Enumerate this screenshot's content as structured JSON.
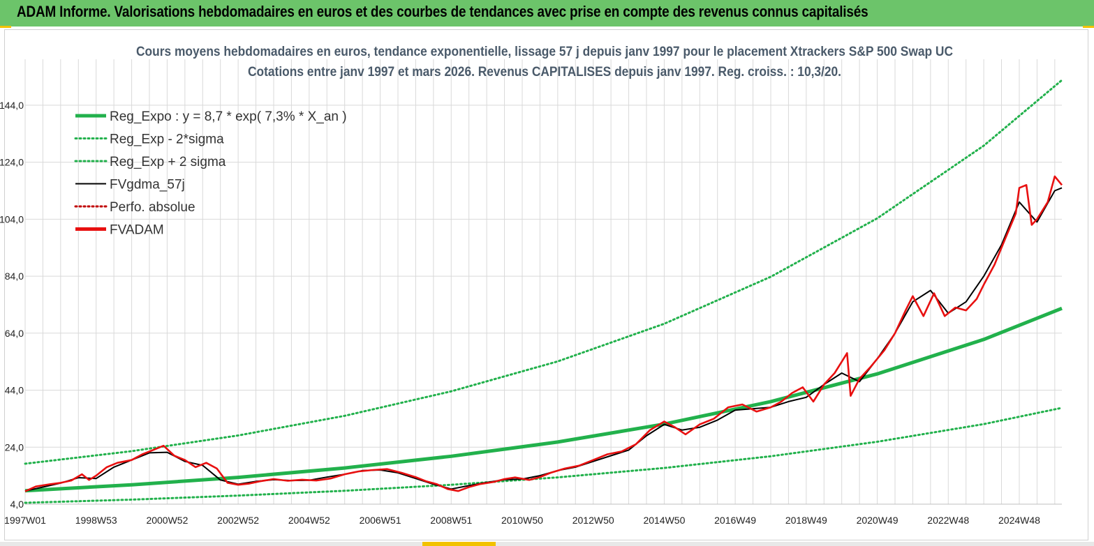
{
  "header": {
    "title": "ADAM Informe. Valorisations hebdomadaires en euros et des courbes de tendances avec prise en compte des revenus connus capitalisés"
  },
  "colors": {
    "header_bg": "#6cc46a",
    "reg_expo": "#22b14c",
    "sigma_bands": "#22b14c",
    "fvgdma": "#000000",
    "perfo_absolue": "#c00000",
    "fvadam": "#e81010",
    "grid": "#d9d9d9"
  },
  "chart_data": {
    "type": "line",
    "title": [
      "Cours moyens hebdomadaires en euros, tendance exponentielle, lissage 57 j depuis janv 1997  pour le placement Xtrackers S&P 500 Swap UC",
      "Cotations entre janv 1997 et mars 2026. Revenus CAPITALISES  depuis janv 1997. Reg. croiss. : 10,3/20."
    ],
    "xlabel": "",
    "ylabel": "",
    "ylim": [
      4.0,
      154.0
    ],
    "yticks": [
      4.0,
      24.0,
      44.0,
      64.0,
      84.0,
      104.0,
      124.0,
      144.0
    ],
    "ytick_labels": [
      "4,0",
      "24,0",
      "44,0",
      "64,0",
      "84,0",
      "104,0",
      "124,0",
      "144,0"
    ],
    "xlim": [
      1997.0,
      2026.2
    ],
    "xticks": [
      1997.0,
      1999.0,
      2001.0,
      2003.0,
      2005.0,
      2007.0,
      2009.0,
      2011.0,
      2013.0,
      2015.0,
      2017.0,
      2019.0,
      2021.0,
      2023.0,
      2025.0
    ],
    "xtick_labels": [
      "1997W01",
      "1998W53",
      "2000W52",
      "2002W52",
      "2004W52",
      "2006W51",
      "2008W51",
      "2010W50",
      "2012W50",
      "2014W50",
      "2016W49",
      "2018W49",
      "2020W49",
      "2022W48",
      "2024W48"
    ],
    "grid": true,
    "legend_position": "top-left",
    "legend": [
      {
        "label": "Reg_Expo : y = 8,7 * exp( 7,3% *  X_an )",
        "style": "thick-solid",
        "color": "#22b14c"
      },
      {
        "label": "Reg_Exp - 2*sigma",
        "style": "dotted",
        "color": "#22b14c"
      },
      {
        "label": "Reg_Exp + 2 sigma",
        "style": "dotted",
        "color": "#22b14c"
      },
      {
        "label": "FVgdma_57j",
        "style": "solid",
        "color": "#000000"
      },
      {
        "label": "Perfo. absolue",
        "style": "dotted",
        "color": "#c00000"
      },
      {
        "label": "FVADAM",
        "style": "thick-solid",
        "color": "#e81010"
      }
    ],
    "series": [
      {
        "name": "Reg_Expo : y = 8,7 * exp( 7,3% *  X_an )",
        "x": [
          1997.0,
          2000.0,
          2003.0,
          2006.0,
          2009.0,
          2012.0,
          2015.0,
          2018.0,
          2021.0,
          2024.0,
          2026.2
        ],
        "y": [
          8.7,
          10.8,
          13.4,
          16.7,
          20.8,
          25.8,
          32.1,
          40.0,
          49.7,
          61.8,
          72.7
        ]
      },
      {
        "name": "Reg_Exp - 2*sigma",
        "x": [
          1997.0,
          2000.0,
          2003.0,
          2006.0,
          2009.0,
          2012.0,
          2015.0,
          2018.0,
          2021.0,
          2024.0,
          2026.2
        ],
        "y": [
          4.5,
          5.6,
          7.0,
          8.7,
          10.8,
          13.4,
          16.7,
          20.8,
          25.9,
          32.1,
          37.8
        ]
      },
      {
        "name": "Reg_Exp + 2 sigma",
        "x": [
          1997.0,
          2000.0,
          2003.0,
          2006.0,
          2009.0,
          2012.0,
          2015.0,
          2018.0,
          2021.0,
          2024.0,
          2026.2
        ],
        "y": [
          18.2,
          22.6,
          28.1,
          35.0,
          43.6,
          54.1,
          67.3,
          83.8,
          104.3,
          129.8,
          152.8
        ]
      },
      {
        "name": "FVgdma_57j",
        "x": [
          1997.0,
          1997.5,
          1998.0,
          1998.5,
          1999.0,
          1999.5,
          2000.0,
          2000.5,
          2001.0,
          2001.5,
          2002.0,
          2002.5,
          2003.0,
          2003.5,
          2004.0,
          2004.5,
          2005.0,
          2005.5,
          2006.0,
          2006.5,
          2007.0,
          2007.5,
          2008.0,
          2008.5,
          2009.0,
          2009.5,
          2010.0,
          2010.5,
          2011.0,
          2011.5,
          2012.0,
          2012.5,
          2013.0,
          2013.5,
          2014.0,
          2014.5,
          2015.0,
          2015.5,
          2016.0,
          2016.5,
          2017.0,
          2017.5,
          2018.0,
          2018.5,
          2019.0,
          2019.5,
          2020.0,
          2020.5,
          2021.0,
          2021.5,
          2022.0,
          2022.5,
          2023.0,
          2023.5,
          2024.0,
          2024.5,
          2025.0,
          2025.5,
          2026.0,
          2026.2
        ],
        "y": [
          8.6,
          10.0,
          11.4,
          13.3,
          13.0,
          17.0,
          19.5,
          22.0,
          22.2,
          19.0,
          17.6,
          12.5,
          11.0,
          12.0,
          12.6,
          12.3,
          12.4,
          13.5,
          14.5,
          15.8,
          16.0,
          15.0,
          13.0,
          11.0,
          9.3,
          10.5,
          11.6,
          12.6,
          12.8,
          14.0,
          15.8,
          17.0,
          19.0,
          21.0,
          23.0,
          28.0,
          32.0,
          30.0,
          31.0,
          33.5,
          37.0,
          37.5,
          38.0,
          40.0,
          41.5,
          46.0,
          50.0,
          47.0,
          55.0,
          64.0,
          75.0,
          79.0,
          71.0,
          75.0,
          84.0,
          95.0,
          110.0,
          103.0,
          114.0,
          115.0
        ]
      },
      {
        "name": "FVADAM",
        "x": [
          1997.0,
          1997.3,
          1997.7,
          1998.0,
          1998.3,
          1998.6,
          1998.8,
          1999.0,
          1999.3,
          1999.6,
          2000.0,
          2000.3,
          2000.6,
          2000.9,
          2001.2,
          2001.5,
          2001.8,
          2002.1,
          2002.4,
          2002.7,
          2003.0,
          2003.3,
          2003.6,
          2004.0,
          2004.4,
          2004.8,
          2005.2,
          2005.6,
          2006.0,
          2006.4,
          2006.8,
          2007.2,
          2007.6,
          2008.0,
          2008.3,
          2008.6,
          2008.9,
          2009.2,
          2009.5,
          2009.8,
          2010.2,
          2010.5,
          2010.8,
          2011.2,
          2011.5,
          2011.8,
          2012.2,
          2012.6,
          2013.0,
          2013.4,
          2013.8,
          2014.2,
          2014.6,
          2015.0,
          2015.3,
          2015.6,
          2016.0,
          2016.4,
          2016.8,
          2017.2,
          2017.6,
          2018.0,
          2018.3,
          2018.6,
          2018.9,
          2019.2,
          2019.5,
          2019.8,
          2020.0,
          2020.15,
          2020.25,
          2020.5,
          2020.8,
          2021.2,
          2021.5,
          2021.8,
          2022.0,
          2022.3,
          2022.6,
          2022.9,
          2023.2,
          2023.5,
          2023.8,
          2024.0,
          2024.3,
          2024.6,
          2024.9,
          2025.0,
          2025.2,
          2025.35,
          2025.5,
          2025.8,
          2026.0,
          2026.2
        ],
        "y": [
          8.5,
          10.2,
          11.0,
          11.5,
          12.3,
          14.5,
          12.5,
          14.0,
          17.0,
          18.5,
          19.5,
          21.5,
          23.0,
          24.5,
          21.0,
          19.5,
          17.0,
          18.5,
          16.5,
          11.5,
          10.8,
          11.2,
          12.0,
          12.8,
          12.2,
          12.6,
          12.3,
          13.0,
          14.5,
          15.5,
          16.0,
          16.3,
          15.0,
          13.5,
          12.0,
          11.0,
          9.3,
          8.6,
          10.0,
          11.0,
          11.8,
          12.8,
          13.4,
          12.5,
          13.5,
          15.0,
          16.5,
          17.5,
          19.5,
          21.5,
          22.5,
          25.0,
          30.0,
          33.0,
          31.0,
          28.5,
          32.0,
          34.0,
          38.0,
          39.0,
          36.5,
          38.0,
          40.0,
          43.0,
          45.0,
          40.0,
          46.0,
          50.0,
          54.0,
          57.0,
          42.0,
          48.0,
          52.0,
          58.0,
          64.0,
          72.0,
          77.0,
          70.0,
          78.0,
          70.0,
          73.0,
          72.0,
          76.0,
          81.0,
          88.0,
          97.0,
          106.0,
          115.0,
          116.0,
          102.0,
          104.0,
          110.0,
          119.0,
          116.0
        ]
      }
    ]
  }
}
